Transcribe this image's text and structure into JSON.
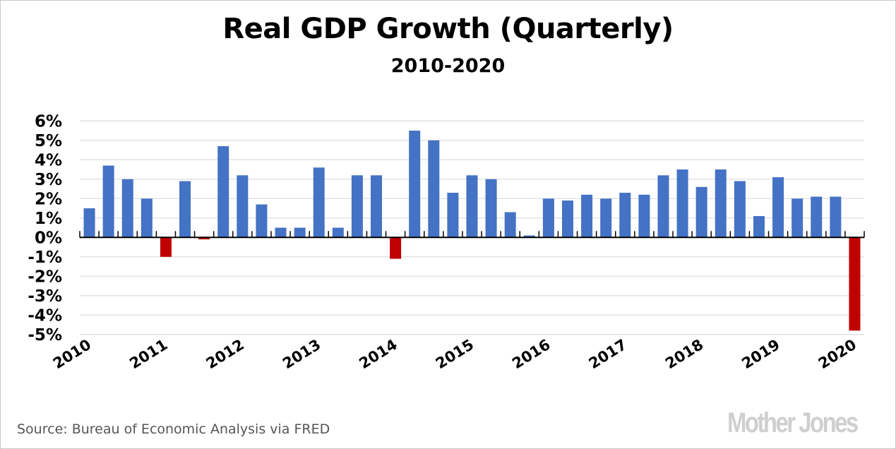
{
  "chart_data": {
    "type": "bar",
    "title": "Real GDP Growth (Quarterly)",
    "subtitle": "2010-2020",
    "xlabel": "",
    "ylabel": "",
    "ylim": [
      -5,
      6
    ],
    "y_ticks": [
      "6%",
      "5%",
      "4%",
      "3%",
      "2%",
      "1%",
      "0%",
      "-1%",
      "-2%",
      "-3%",
      "-4%",
      "-5%"
    ],
    "y_tick_values": [
      6,
      5,
      4,
      3,
      2,
      1,
      0,
      -1,
      -2,
      -3,
      -4,
      -5
    ],
    "x_tick_labels": [
      "2010",
      "2011",
      "2012",
      "2013",
      "2014",
      "2015",
      "2016",
      "2017",
      "2018",
      "2019",
      "2020"
    ],
    "grid": true,
    "categories": [
      "2010 Q1",
      "2010 Q2",
      "2010 Q3",
      "2010 Q4",
      "2011 Q1",
      "2011 Q2",
      "2011 Q3",
      "2011 Q4",
      "2012 Q1",
      "2012 Q2",
      "2012 Q3",
      "2012 Q4",
      "2013 Q1",
      "2013 Q2",
      "2013 Q3",
      "2013 Q4",
      "2014 Q1",
      "2014 Q2",
      "2014 Q3",
      "2014 Q4",
      "2015 Q1",
      "2015 Q2",
      "2015 Q3",
      "2015 Q4",
      "2016 Q1",
      "2016 Q2",
      "2016 Q3",
      "2016 Q4",
      "2017 Q1",
      "2017 Q2",
      "2017 Q3",
      "2017 Q4",
      "2018 Q1",
      "2018 Q2",
      "2018 Q3",
      "2018 Q4",
      "2019 Q1",
      "2019 Q2",
      "2019 Q3",
      "2019 Q4",
      "2020 Q1"
    ],
    "values": [
      1.5,
      3.7,
      3.0,
      2.0,
      -1.0,
      2.9,
      -0.1,
      4.7,
      3.2,
      1.7,
      0.5,
      0.5,
      3.6,
      0.5,
      3.2,
      3.2,
      -1.1,
      5.5,
      5.0,
      2.3,
      3.2,
      3.0,
      1.3,
      0.1,
      2.0,
      1.9,
      2.2,
      2.0,
      2.3,
      2.2,
      3.2,
      3.5,
      2.6,
      3.5,
      2.9,
      1.1,
      3.1,
      2.0,
      2.1,
      2.1,
      -4.8
    ],
    "colors": {
      "positive": "#4472c4",
      "negative": "#c00000",
      "grid": "#e3e3e3",
      "axis": "#000000"
    }
  },
  "footer": {
    "source": "Source: Bureau of Economic Analysis via FRED",
    "logo": "Mother Jones"
  }
}
